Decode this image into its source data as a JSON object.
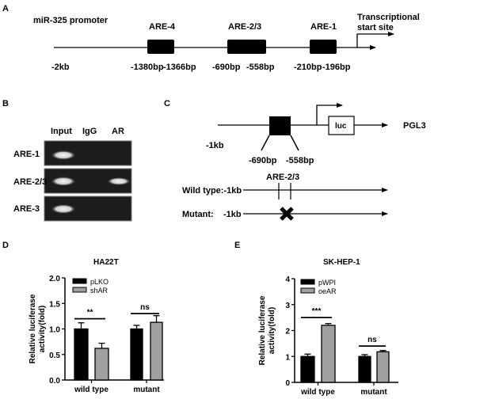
{
  "panel_labels": {
    "a": "A",
    "b": "B",
    "c": "C",
    "d": "D",
    "e": "E"
  },
  "panel_a": {
    "promoter_label": "miR-325 promoter",
    "elements": [
      "ARE-4",
      "ARE-2/3",
      "ARE-1"
    ],
    "tss_line1": "Transcriptional",
    "tss_line2": "start site",
    "positions": [
      "-2kb",
      "-1380bp",
      "-1366bp",
      "-690bp",
      "-558bp",
      "-210bp",
      "-196bp"
    ]
  },
  "panel_b": {
    "columns": [
      "Input",
      "IgG",
      "AR"
    ],
    "rows": [
      "ARE-1",
      "ARE-2/3",
      "ARE-3"
    ]
  },
  "panel_c": {
    "start": "-1kb",
    "reporter": "luc",
    "vector": "PGL3",
    "pos_left": "-690bp",
    "pos_right": "-558bp",
    "site": "ARE-2/3",
    "wild_type": "Wild type:-1kb",
    "mutant": "Mutant:",
    "mutant_start": "-1kb"
  },
  "chart_data": [
    {
      "type": "bar",
      "title": "HA22T",
      "ylabel": "Relative luciferase activity(fold)",
      "categories": [
        "wild type",
        "mutant"
      ],
      "ylim": [
        0,
        2.0
      ],
      "yticks": [
        "0.0",
        "0.5",
        "1.0",
        "1.5",
        "2.0"
      ],
      "legend_position": "top-left",
      "series": [
        {
          "name": "pLKO",
          "color": "#000000",
          "values": [
            1.0,
            1.0
          ],
          "errors": [
            0.12,
            0.07
          ]
        },
        {
          "name": "shAR",
          "color": "#a0a0a0",
          "values": [
            0.62,
            1.13
          ],
          "errors": [
            0.1,
            0.13
          ]
        }
      ],
      "significance": [
        {
          "category": "wild type",
          "label": "**",
          "level": 1.2
        },
        {
          "category": "mutant",
          "label": "ns",
          "level": 1.3
        }
      ]
    },
    {
      "type": "bar",
      "title": "SK-HEP-1",
      "ylabel": "Relative luciferase activity(fold)",
      "categories": [
        "wild type",
        "mutant"
      ],
      "ylim": [
        0,
        4
      ],
      "yticks": [
        "0",
        "1",
        "2",
        "3",
        "4"
      ],
      "legend_position": "top-left",
      "series": [
        {
          "name": "pWPI",
          "color": "#000000",
          "values": [
            1.0,
            1.0
          ],
          "errors": [
            0.09,
            0.07
          ]
        },
        {
          "name": "oeAR",
          "color": "#a0a0a0",
          "values": [
            2.2,
            1.18
          ],
          "errors": [
            0.07,
            0.05
          ]
        }
      ],
      "significance": [
        {
          "category": "wild type",
          "label": "***",
          "level": 2.5
        },
        {
          "category": "mutant",
          "label": "ns",
          "level": 1.4
        }
      ]
    }
  ]
}
